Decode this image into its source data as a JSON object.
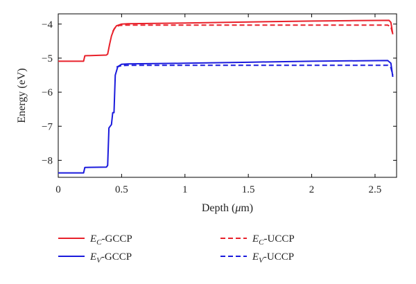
{
  "chart_data": {
    "type": "line",
    "title": "",
    "xlabel_prefix": "Depth (",
    "xlabel_unit_symbol": "μ",
    "xlabel_suffix": "m)",
    "ylabel": "Energy (eV)",
    "xlim": [
      0,
      2.67
    ],
    "ylim": [
      -8.5,
      -3.7
    ],
    "x_ticks": [
      0,
      0.5,
      1,
      1.5,
      2,
      2.5
    ],
    "x_tick_labels": [
      "0",
      "0.5",
      "1",
      "1.5",
      "2",
      "2.5"
    ],
    "y_ticks": [
      -8,
      -7,
      -6,
      -5,
      -4
    ],
    "y_tick_labels": [
      "−8",
      "−7",
      "−6",
      "−5",
      "−4"
    ],
    "grid": false,
    "legend_position": "bottom",
    "series": [
      {
        "name_main": "E",
        "name_sub": "C",
        "name_rest": "-GCCP",
        "color": "#e8202a",
        "dash": "solid",
        "points": [
          [
            0,
            -5.09
          ],
          [
            0.2,
            -5.09
          ],
          [
            0.21,
            -4.93
          ],
          [
            0.38,
            -4.91
          ],
          [
            0.39,
            -4.88
          ],
          [
            0.405,
            -4.6
          ],
          [
            0.42,
            -4.35
          ],
          [
            0.44,
            -4.15
          ],
          [
            0.46,
            -4.05
          ],
          [
            0.5,
            -4.0
          ],
          [
            0.55,
            -3.99
          ],
          [
            1.0,
            -3.97
          ],
          [
            1.5,
            -3.94
          ],
          [
            2.0,
            -3.91
          ],
          [
            2.3,
            -3.9
          ],
          [
            2.61,
            -3.89
          ],
          [
            2.625,
            -3.95
          ],
          [
            2.64,
            -4.3
          ]
        ]
      },
      {
        "name_main": "E",
        "name_sub": "C",
        "name_rest": "-UCCP",
        "color": "#e8202a",
        "dash": "dashed",
        "points": [
          [
            0.43,
            -4.22
          ],
          [
            0.45,
            -4.1
          ],
          [
            0.48,
            -4.04
          ],
          [
            0.53,
            -4.03
          ],
          [
            1.0,
            -4.03
          ],
          [
            1.5,
            -4.03
          ],
          [
            2.0,
            -4.03
          ],
          [
            2.6,
            -4.03
          ],
          [
            2.625,
            -4.08
          ],
          [
            2.64,
            -4.3
          ]
        ]
      },
      {
        "name_main": "E",
        "name_sub": "V",
        "name_rest": "-GCCP",
        "color": "#1a1adc",
        "dash": "solid",
        "points": [
          [
            0,
            -8.37
          ],
          [
            0.2,
            -8.37
          ],
          [
            0.21,
            -8.21
          ],
          [
            0.38,
            -8.2
          ],
          [
            0.39,
            -8.15
          ],
          [
            0.4,
            -7.05
          ],
          [
            0.42,
            -6.95
          ],
          [
            0.43,
            -6.6
          ],
          [
            0.44,
            -6.6
          ],
          [
            0.45,
            -5.5
          ],
          [
            0.47,
            -5.25
          ],
          [
            0.5,
            -5.18
          ],
          [
            0.55,
            -5.17
          ],
          [
            1.0,
            -5.15
          ],
          [
            1.5,
            -5.12
          ],
          [
            2.0,
            -5.09
          ],
          [
            2.6,
            -5.07
          ],
          [
            2.625,
            -5.15
          ],
          [
            2.64,
            -5.55
          ]
        ]
      },
      {
        "name_main": "E",
        "name_sub": "V",
        "name_rest": "-UCCP",
        "color": "#1a1adc",
        "dash": "dashed",
        "points": [
          [
            0.46,
            -5.26
          ],
          [
            0.5,
            -5.22
          ],
          [
            0.55,
            -5.21
          ],
          [
            1.0,
            -5.21
          ],
          [
            1.5,
            -5.21
          ],
          [
            2.0,
            -5.21
          ],
          [
            2.6,
            -5.21
          ],
          [
            2.625,
            -5.28
          ],
          [
            2.64,
            -5.5
          ]
        ]
      }
    ]
  }
}
